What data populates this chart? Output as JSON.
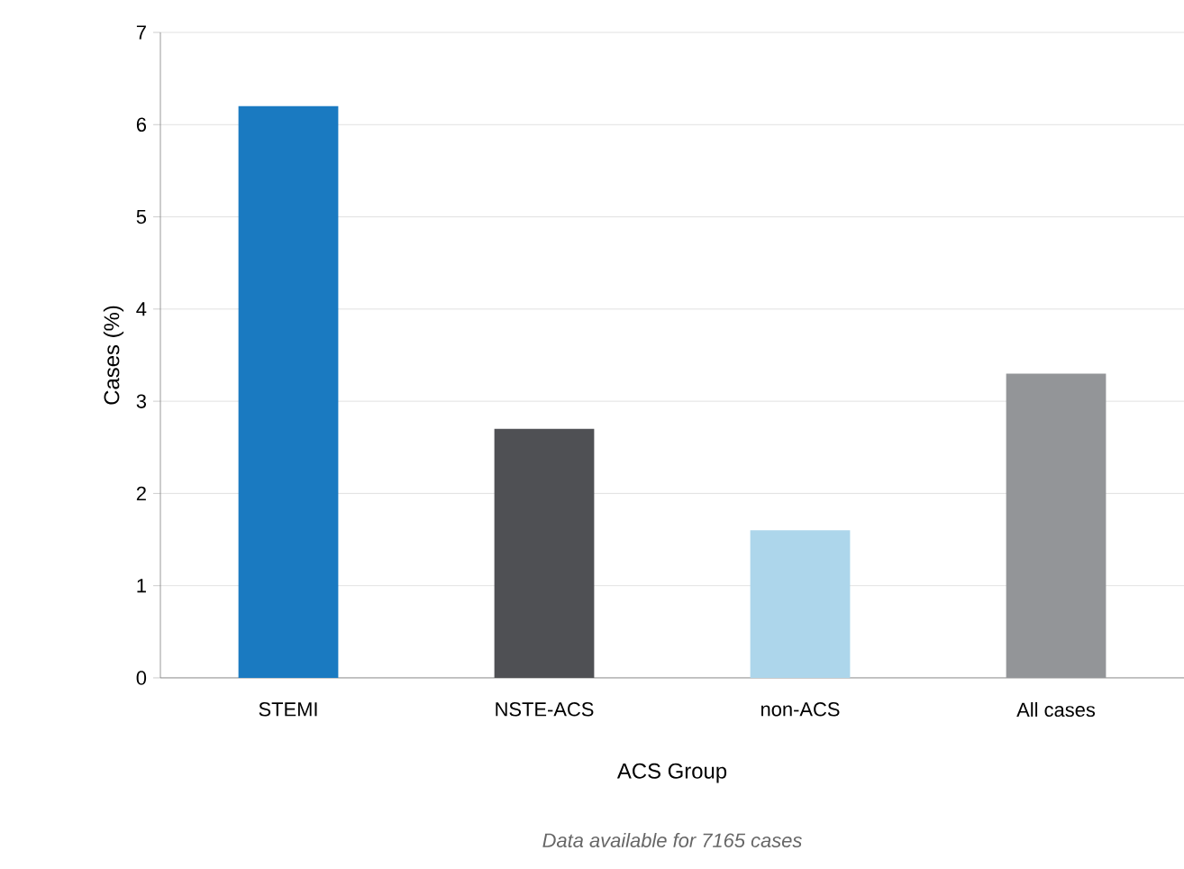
{
  "chart_data": {
    "type": "bar",
    "xlabel": "ACS Group",
    "ylabel": "Cases (%)",
    "annotations": [
      "Data available for 7165 cases"
    ],
    "categories": [
      "STEMI",
      "NSTE-ACS",
      "non-ACS",
      "All cases"
    ],
    "values": [
      6.2,
      2.7,
      1.6,
      3.3
    ],
    "colors": [
      "#1a7ac1",
      "#4f5054",
      "#add6eb",
      "#939598"
    ],
    "ylim": [
      0,
      7
    ],
    "yticks": [
      0,
      1,
      2,
      3,
      4,
      5,
      6,
      7
    ],
    "grid": "y"
  }
}
